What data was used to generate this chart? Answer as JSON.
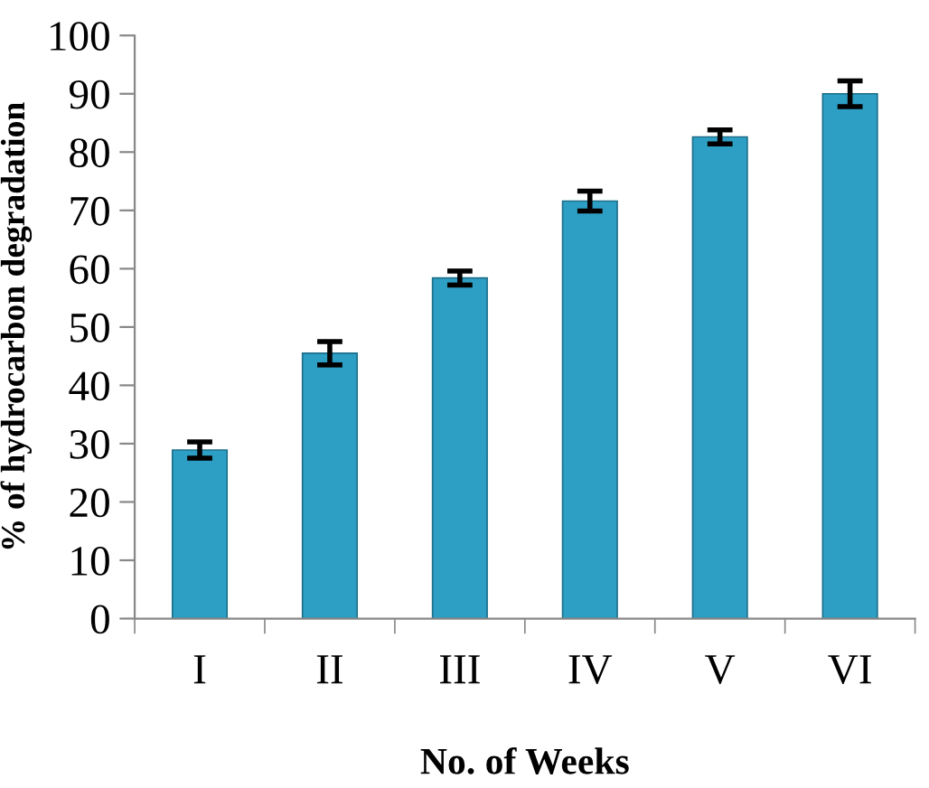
{
  "chart_data": {
    "type": "bar",
    "xlabel": "No. of Weeks",
    "ylabel": "% of hydrocarbon degradation",
    "categories": [
      "I",
      "II",
      "III",
      "IV",
      "V",
      "VI"
    ],
    "values": [
      28.9,
      45.5,
      58.4,
      71.6,
      82.6,
      90.0
    ],
    "errors": [
      1.4,
      2.0,
      1.2,
      1.7,
      1.2,
      2.2
    ],
    "color": "#2e9fc4",
    "ylim": [
      0,
      100
    ],
    "yticks": [
      0,
      10,
      20,
      30,
      40,
      50,
      60,
      70,
      80,
      90,
      100
    ],
    "grid": false
  }
}
